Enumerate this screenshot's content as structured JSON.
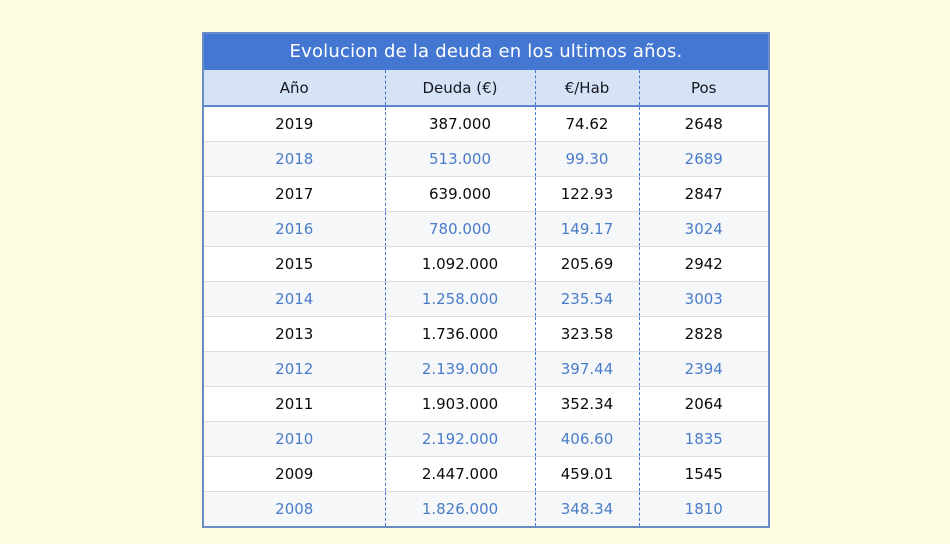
{
  "page": {
    "background_color": "#FFFDDF"
  },
  "table": {
    "title": "Evolucion de la deuda en los ultimos años.",
    "columns": [
      "Año",
      "Deuda (€)",
      "€/Hab",
      "Pos"
    ],
    "column_keys": [
      "year",
      "debt",
      "per-capita",
      "position"
    ],
    "rows": [
      [
        "2019",
        "387.000",
        "74.62",
        "2648"
      ],
      [
        "2018",
        "513.000",
        "99.30",
        "2689"
      ],
      [
        "2017",
        "639.000",
        "122.93",
        "2847"
      ],
      [
        "2016",
        "780.000",
        "149.17",
        "3024"
      ],
      [
        "2015",
        "1.092.000",
        "205.69",
        "2942"
      ],
      [
        "2014",
        "1.258.000",
        "235.54",
        "3003"
      ],
      [
        "2013",
        "1.736.000",
        "323.58",
        "2828"
      ],
      [
        "2012",
        "2.139.000",
        "397.44",
        "2394"
      ],
      [
        "2011",
        "1.903.000",
        "352.34",
        "2064"
      ],
      [
        "2010",
        "2.192.000",
        "406.60",
        "1835"
      ],
      [
        "2009",
        "2.447.000",
        "459.01",
        "1545"
      ],
      [
        "2008",
        "1.826.000",
        "348.34",
        "1810"
      ]
    ],
    "colors": {
      "title_bg": "#4377D2",
      "title_text": "#FFFFFF",
      "header_bg": "#D6E3F7",
      "header_text": "#16161E",
      "row_odd_bg": "#FFFFFF",
      "row_odd_text": "#0B0B0D",
      "row_even_bg": "#F6F7F8",
      "row_even_text": "#4A7CC9",
      "column_divider": "#4377D2",
      "row_divider": "#DCDCDC",
      "header_underline": "#5C84CE",
      "outer_border": "#6A8CC9"
    }
  }
}
